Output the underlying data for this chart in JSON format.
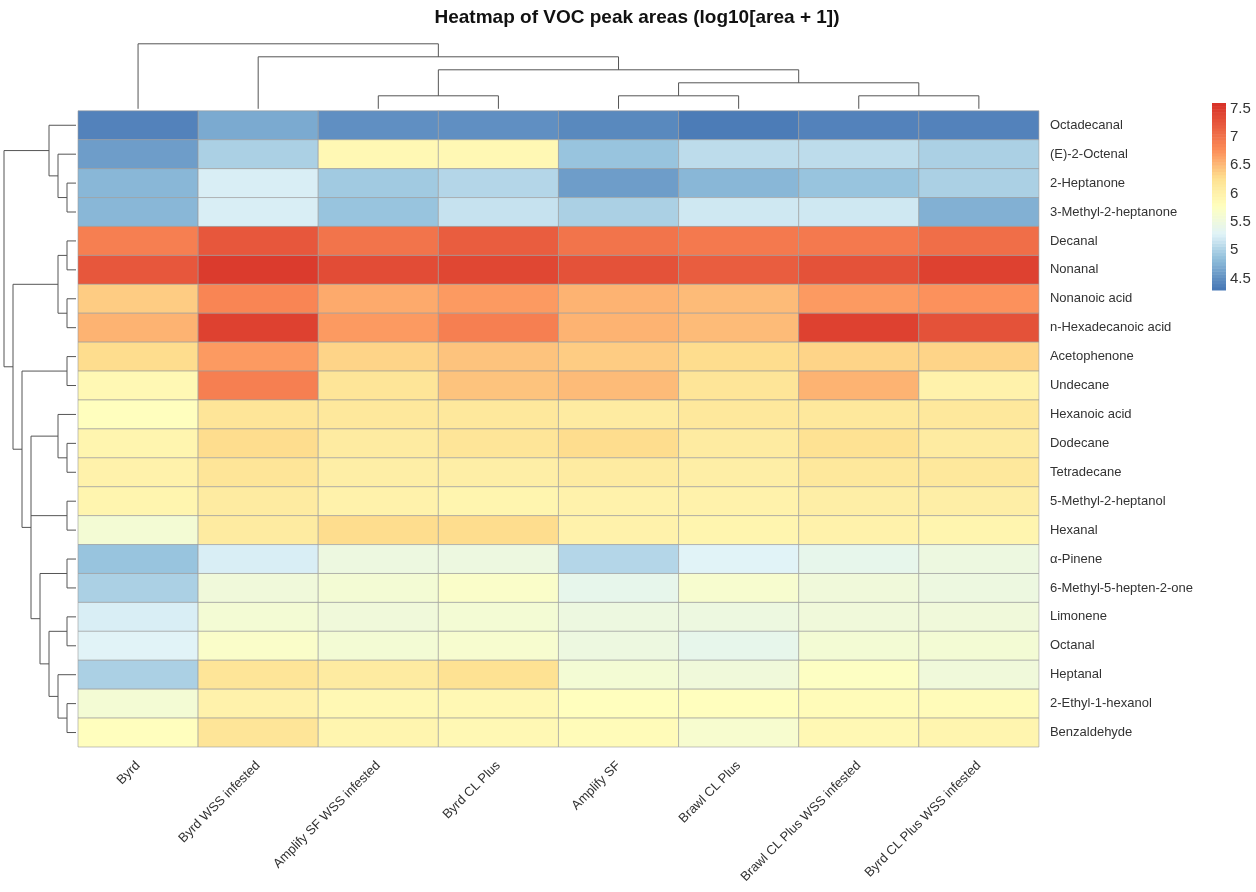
{
  "chart_data": {
    "type": "heatmap",
    "title": "Heatmap of VOC peak areas (log10[area + 1])",
    "categories": [
      "Byrd",
      "Byrd WSS infested",
      "Amplify SF WSS infested",
      "Byrd CL Plus",
      "Amplify SF",
      "Brawl CL Plus",
      "Brawl CL Plus WSS infested",
      "Byrd CL Plus WSS infested"
    ],
    "y_categories": [
      "Octadecanal",
      "(E)-2-Octenal",
      "2-Heptanone",
      "3-Methyl-2-heptanone",
      "Decanal",
      "Nonanal",
      "Nonanoic acid",
      "n-Hexadecanoic acid",
      "Acetophenone",
      "Undecane",
      "Hexanoic acid",
      "Dodecane",
      "Tetradecane",
      "5-Methyl-2-heptanol",
      "Hexanal",
      "α-Pinene",
      "6-Methyl-5-hepten-2-one",
      "Limonene",
      "Octanal",
      "Heptanal",
      "2-Ethyl-1-hexanol",
      "Benzaldehyde"
    ],
    "cells": [
      [
        4.4,
        4.7,
        4.5,
        4.5,
        4.45,
        4.35,
        4.4,
        4.4
      ],
      [
        4.6,
        5.0,
        5.9,
        5.9,
        4.9,
        5.1,
        5.1,
        5.0
      ],
      [
        4.8,
        5.25,
        4.95,
        5.05,
        4.6,
        4.8,
        4.9,
        5.0
      ],
      [
        4.8,
        5.25,
        4.9,
        5.15,
        5.0,
        5.2,
        5.2,
        4.75
      ],
      [
        6.9,
        7.25,
        7.0,
        7.2,
        7.0,
        6.95,
        6.95,
        7.05
      ],
      [
        7.25,
        7.5,
        7.35,
        7.4,
        7.3,
        7.2,
        7.3,
        7.45
      ],
      [
        6.4,
        6.85,
        6.6,
        6.7,
        6.55,
        6.5,
        6.7,
        6.75
      ],
      [
        6.55,
        7.45,
        6.7,
        6.9,
        6.55,
        6.5,
        7.45,
        7.3
      ],
      [
        6.3,
        6.7,
        6.35,
        6.45,
        6.4,
        6.3,
        6.35,
        6.35
      ],
      [
        5.9,
        6.9,
        6.2,
        6.45,
        6.5,
        6.2,
        6.55,
        6.0
      ],
      [
        5.8,
        6.2,
        6.15,
        6.15,
        6.1,
        6.15,
        6.15,
        6.15
      ],
      [
        5.95,
        6.3,
        6.1,
        6.2,
        6.3,
        6.1,
        6.25,
        6.1
      ],
      [
        6.0,
        6.2,
        6.05,
        6.05,
        6.1,
        6.05,
        6.15,
        6.15
      ],
      [
        5.95,
        6.1,
        6.0,
        5.95,
        6.0,
        6.0,
        6.05,
        6.05
      ],
      [
        5.6,
        6.1,
        6.3,
        6.3,
        6.0,
        5.95,
        6.0,
        5.95
      ],
      [
        4.9,
        5.25,
        5.5,
        5.5,
        5.05,
        5.3,
        5.4,
        5.5
      ],
      [
        5.0,
        5.55,
        5.6,
        5.7,
        5.4,
        5.65,
        5.55,
        5.5
      ],
      [
        5.25,
        5.6,
        5.55,
        5.6,
        5.5,
        5.5,
        5.55,
        5.55
      ],
      [
        5.3,
        5.7,
        5.6,
        5.65,
        5.5,
        5.4,
        5.6,
        5.6
      ],
      [
        5.0,
        6.2,
        6.1,
        6.25,
        5.6,
        5.55,
        5.75,
        5.55
      ],
      [
        5.6,
        6.0,
        5.9,
        5.9,
        5.8,
        5.8,
        5.85,
        5.85
      ],
      [
        5.8,
        6.2,
        5.95,
        5.9,
        5.85,
        5.65,
        5.9,
        5.95
      ]
    ],
    "clim": [
      4.3,
      7.6
    ],
    "cticks": [
      4.5,
      5,
      5.5,
      6,
      6.5,
      7,
      7.5
    ]
  }
}
